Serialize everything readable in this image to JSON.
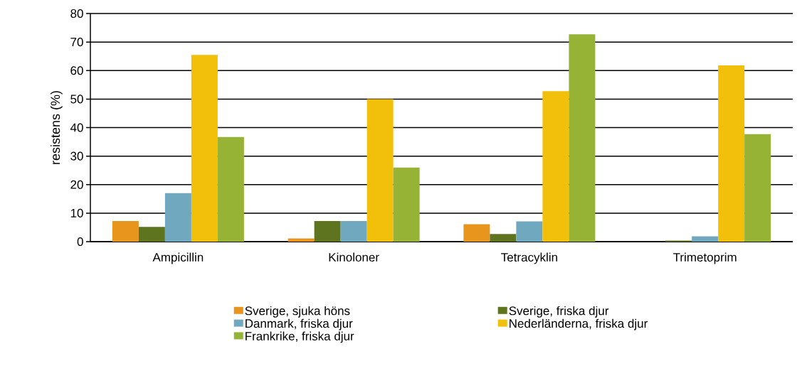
{
  "chart_data": {
    "type": "bar",
    "ylabel": "resistens (%)",
    "categories": [
      "Ampicillin",
      "Kinoloner",
      "Tetracyklin",
      "Trimetoprim"
    ],
    "series": [
      {
        "name": "Sverige, sjuka höns",
        "color": "#e8951e",
        "values": [
          7.2,
          1.1,
          6.1,
          0
        ]
      },
      {
        "name": "Sverige, friska djur",
        "color": "#5e741e",
        "values": [
          5.2,
          7.2,
          2.7,
          0.4
        ]
      },
      {
        "name": "Danmark, friska djur",
        "color": "#70a8c0",
        "values": [
          17.0,
          7.2,
          7.1,
          1.9
        ]
      },
      {
        "name": "Nederländerna, friska djur",
        "color": "#f2c00a",
        "values": [
          65.5,
          50.0,
          52.8,
          61.8
        ]
      },
      {
        "name": "Frankrike, friska djur",
        "color": "#97b336",
        "values": [
          36.7,
          26.0,
          72.7,
          37.7
        ]
      }
    ],
    "ylim": [
      0,
      80
    ],
    "yticks": [
      0,
      10,
      20,
      30,
      40,
      50,
      60,
      70,
      80
    ],
    "grid": "y",
    "legend": "bottom"
  }
}
